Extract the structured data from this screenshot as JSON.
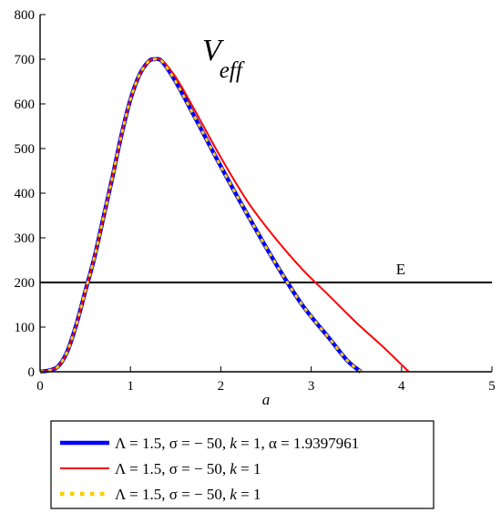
{
  "chart_data": {
    "type": "line",
    "title": "",
    "xlabel": "a",
    "ylabel": "",
    "xlim": [
      0,
      5
    ],
    "ylim": [
      0,
      800
    ],
    "xticks": [
      "0",
      "1",
      "2",
      "3",
      "4",
      "5"
    ],
    "yticks": [
      "0",
      "100",
      "200",
      "300",
      "400",
      "500",
      "600",
      "700",
      "800"
    ],
    "grid": false,
    "legend_position": "bottom",
    "annotations": {
      "v_main": "V",
      "v_sub": "eff",
      "energy_label": "E",
      "energy_level": 200
    },
    "series": [
      {
        "name": "Λ = 1.5, σ = − 50, k = 1, α = 1.9397961",
        "legend_parts": [
          "Λ = 1.5, σ = − 50, ",
          "k",
          " = 1, α = 1.9397961"
        ],
        "color": "#0000ff",
        "style": "solid",
        "x": [
          0,
          0.1,
          0.2,
          0.3,
          0.4,
          0.5,
          0.6,
          0.7,
          0.8,
          0.9,
          1.0,
          1.1,
          1.2,
          1.27,
          1.35,
          1.5,
          1.7,
          2.0,
          2.3,
          2.6,
          2.9,
          3.2,
          3.4,
          3.55
        ],
        "y": [
          0,
          3,
          12,
          45,
          105,
          180,
          255,
          345,
          435,
          530,
          610,
          665,
          695,
          700,
          695,
          650,
          575,
          460,
          350,
          245,
          150,
          75,
          25,
          0
        ]
      },
      {
        "name": "Λ = 1.5, σ = − 50, k = 1",
        "legend_parts": [
          "Λ = 1.5, σ = − 50, ",
          "k",
          " = 1"
        ],
        "color": "#ff0000",
        "style": "solid",
        "x": [
          0,
          0.1,
          0.2,
          0.3,
          0.4,
          0.5,
          0.6,
          0.7,
          0.8,
          0.9,
          1.0,
          1.1,
          1.2,
          1.27,
          1.35,
          1.5,
          1.7,
          2.0,
          2.3,
          2.6,
          2.9,
          3.2,
          3.5,
          3.8,
          4.08
        ],
        "y": [
          0,
          3,
          12,
          45,
          105,
          180,
          255,
          345,
          435,
          530,
          610,
          665,
          695,
          700,
          697,
          660,
          590,
          480,
          380,
          300,
          230,
          170,
          110,
          55,
          0
        ]
      },
      {
        "name": "Λ = 1.5, σ = − 50, k = 1",
        "legend_parts": [
          "Λ = 1.5, σ = − 50, ",
          "k",
          " = 1"
        ],
        "color": "#f5d000",
        "style": "dotted",
        "x": [
          0,
          0.1,
          0.2,
          0.3,
          0.4,
          0.5,
          0.6,
          0.7,
          0.8,
          0.9,
          1.0,
          1.1,
          1.2,
          1.27,
          1.35,
          1.5,
          1.7,
          2.0,
          2.3,
          2.6,
          2.9,
          3.2,
          3.4,
          3.55
        ],
        "y": [
          0,
          3,
          12,
          45,
          105,
          180,
          255,
          345,
          435,
          530,
          610,
          665,
          695,
          700,
          695,
          650,
          575,
          460,
          350,
          245,
          150,
          75,
          25,
          0
        ]
      }
    ]
  }
}
